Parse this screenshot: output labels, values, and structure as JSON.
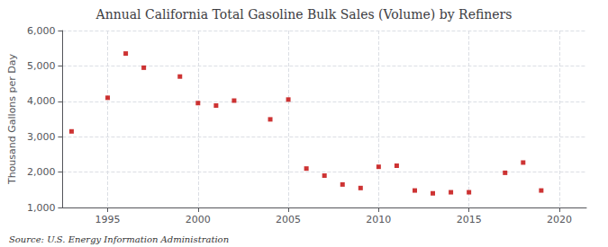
{
  "chart_data": {
    "type": "scatter",
    "title": "Annual California Total Gasoline Bulk Sales (Volume) by Refiners",
    "ylabel": "Thousand Gallons per Day",
    "annotation": "Source: U.S. Energy Information Administration",
    "x": [
      1993,
      1995,
      1996,
      1997,
      1999,
      2000,
      2001,
      2002,
      2004,
      2005,
      2006,
      2007,
      2008,
      2009,
      2010,
      2011,
      2012,
      2013,
      2014,
      2015,
      2017,
      2018,
      2019
    ],
    "values": [
      3150,
      4100,
      5350,
      4950,
      4700,
      3950,
      3880,
      4020,
      3490,
      4050,
      2100,
      1900,
      1650,
      1550,
      2150,
      2180,
      1480,
      1400,
      1430,
      1430,
      1980,
      2270,
      1480
    ],
    "color": "#c00000",
    "marker": "square",
    "xlim": [
      1992.5,
      2021.5
    ],
    "xticks": [
      1995,
      2000,
      2005,
      2010,
      2015,
      2020
    ],
    "ylim": [
      1000,
      6000
    ],
    "yticks": [
      {
        "value": 1000,
        "label": "1,000"
      },
      {
        "value": 2000,
        "label": "2,000"
      },
      {
        "value": 3000,
        "label": "3,000"
      },
      {
        "value": 4000,
        "label": "4,000"
      },
      {
        "value": 5000,
        "label": "5,000"
      },
      {
        "value": 6000,
        "label": "6,000"
      }
    ],
    "grid": true
  }
}
